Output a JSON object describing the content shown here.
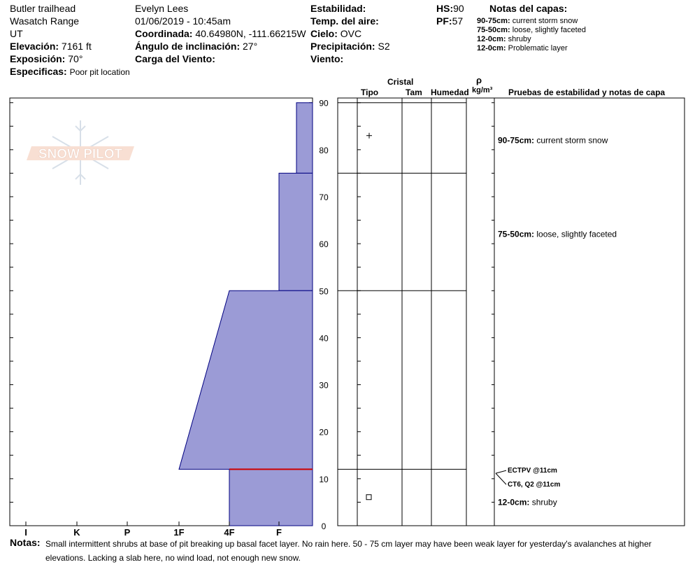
{
  "header": {
    "location": "Butler trailhead",
    "range": "Wasatch Range",
    "state": "UT",
    "elevation_label": "Elevación:",
    "elevation_value": "7161 ft",
    "aspect_label": "Exposición:",
    "aspect_value": "70°",
    "specifics_label": "Especificas:",
    "specifics_value": "Poor pit location",
    "observer": "Evelyn Lees",
    "datetime": "01/06/2019 - 10:45am",
    "coord_label": "Coordinada:",
    "coord_value": "40.64980N, -111.66215W",
    "incline_label": "Ángulo de inclinación:",
    "incline_value": "27°",
    "wind_load_label": "Carga del Viento:",
    "wind_load_value": "",
    "stability_label": "Estabilidad:",
    "stability_value": "",
    "air_temp_label": "Temp. del aire:",
    "air_temp_value": "",
    "sky_label": "Cielo:",
    "sky_value": "OVC",
    "precip_label": "Precipitación:",
    "precip_value": "S2",
    "wind_label": "Viento:",
    "wind_value": "",
    "hs_label": "HS:",
    "hs_value": "90",
    "pf_label": "PF:",
    "pf_value": "57",
    "layer_notes_title": "Notas del capas:",
    "layer_notes": [
      {
        "range": "90-75cm:",
        "text": "current storm snow"
      },
      {
        "range": "75-50cm:",
        "text": "loose, slightly faceted"
      },
      {
        "range": "12-0cm:",
        "text": "shruby"
      },
      {
        "range": "12-0cm:",
        "text": "Problematic layer"
      }
    ]
  },
  "columns": {
    "crystal": "Cristal",
    "type": "Tipo",
    "size": "Tam",
    "moisture": "Humedad",
    "rho": "ρ",
    "density_unit": "kg/m³",
    "stability_tests": "Pruebas de estabilidad y notas de capa"
  },
  "chart_data": {
    "type": "area",
    "title": "",
    "xlabel": "",
    "ylabel": "",
    "hardness_categories": [
      "I",
      "K",
      "P",
      "1F",
      "4F",
      "F"
    ],
    "ylim": [
      0,
      90
    ],
    "y_ticks": [
      0,
      10,
      20,
      30,
      40,
      50,
      60,
      70,
      80,
      90
    ],
    "hand_hardness_profile": [
      {
        "top": 90,
        "bottom": 75,
        "hardness_top": "F-",
        "hardness_bottom": "F-"
      },
      {
        "top": 75,
        "bottom": 50,
        "hardness_top": "F",
        "hardness_bottom": "F"
      },
      {
        "top": 50,
        "bottom": 12,
        "hardness_top": "4F",
        "hardness_bottom": "1F"
      },
      {
        "top": 12,
        "bottom": 0,
        "hardness_top": "4F",
        "hardness_bottom": "4F"
      }
    ],
    "layer_boundaries": [
      90,
      75,
      50,
      12
    ],
    "grain_symbols": [
      {
        "depth": 83,
        "symbol": "+"
      },
      {
        "depth": 6,
        "symbol": "□"
      }
    ],
    "layer_annotations": [
      {
        "depth": 82,
        "range": "90-75cm:",
        "text": "current storm snow"
      },
      {
        "depth": 62,
        "range": "75-50cm:",
        "text": "loose, slightly faceted"
      },
      {
        "depth": 5,
        "range": "12-0cm:",
        "text": "shruby"
      }
    ],
    "stability_tests": [
      {
        "depth": 11,
        "label": "ECTPV @11cm"
      },
      {
        "depth": 11,
        "label": "CT6, Q2 @11cm"
      }
    ],
    "marked_layer_depth": 12,
    "colors": {
      "fill": "#9b9bd6",
      "edge": "#000080",
      "marker": "#cc0000"
    }
  },
  "notes": {
    "label": "Notas:",
    "text": "Small intermittent shrubs at base of pit breaking up basal facet layer.  No rain here.  50 - 75 cm layer may have been weak layer for yesterday's avalanches at higher elevations.  Lacking a slab here, no wind load, not enough new snow."
  },
  "logo": {
    "text": "SNOW PILOT"
  }
}
